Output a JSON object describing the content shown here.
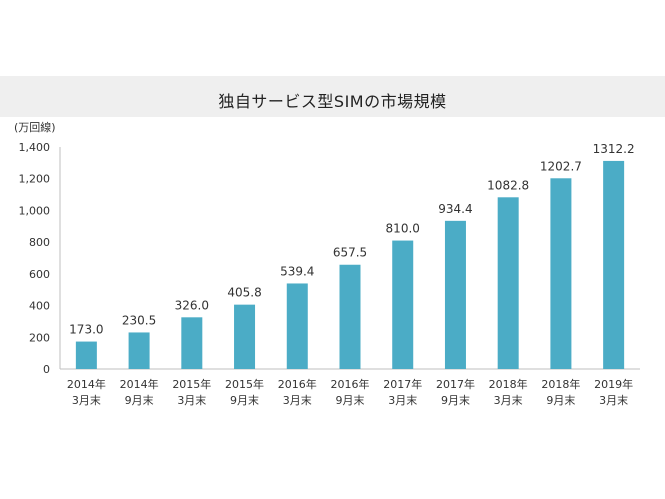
{
  "chart_data": {
    "type": "bar",
    "title": "独自サービス型SIMの市場規模",
    "unit_label": "(万回線)",
    "xlabel": "",
    "ylabel": "",
    "ylim": [
      0,
      1400
    ],
    "yticks": [
      0,
      200,
      400,
      600,
      800,
      1000,
      1200,
      1400
    ],
    "ytick_labels": [
      "0",
      "200",
      "400",
      "600",
      "800",
      "1,000",
      "1,200",
      "1,400"
    ],
    "categories": [
      [
        "2014年",
        "3月末"
      ],
      [
        "2014年",
        "9月末"
      ],
      [
        "2015年",
        "3月末"
      ],
      [
        "2015年",
        "9月末"
      ],
      [
        "2016年",
        "3月末"
      ],
      [
        "2016年",
        "9月末"
      ],
      [
        "2017年",
        "3月末"
      ],
      [
        "2017年",
        "9月末"
      ],
      [
        "2018年",
        "3月末"
      ],
      [
        "2018年",
        "9月末"
      ],
      [
        "2019年",
        "3月末"
      ]
    ],
    "values": [
      173.0,
      230.5,
      326.0,
      405.8,
      539.4,
      657.5,
      810.0,
      934.4,
      1082.8,
      1202.7,
      1312.2
    ],
    "value_labels": [
      "173.0",
      "230.5",
      "326.0",
      "405.8",
      "539.4",
      "657.5",
      "810.0",
      "934.4",
      "1082.8",
      "1202.7",
      "1312.2"
    ],
    "bar_color": "#4bacc6",
    "grid": false,
    "legend": "none"
  }
}
